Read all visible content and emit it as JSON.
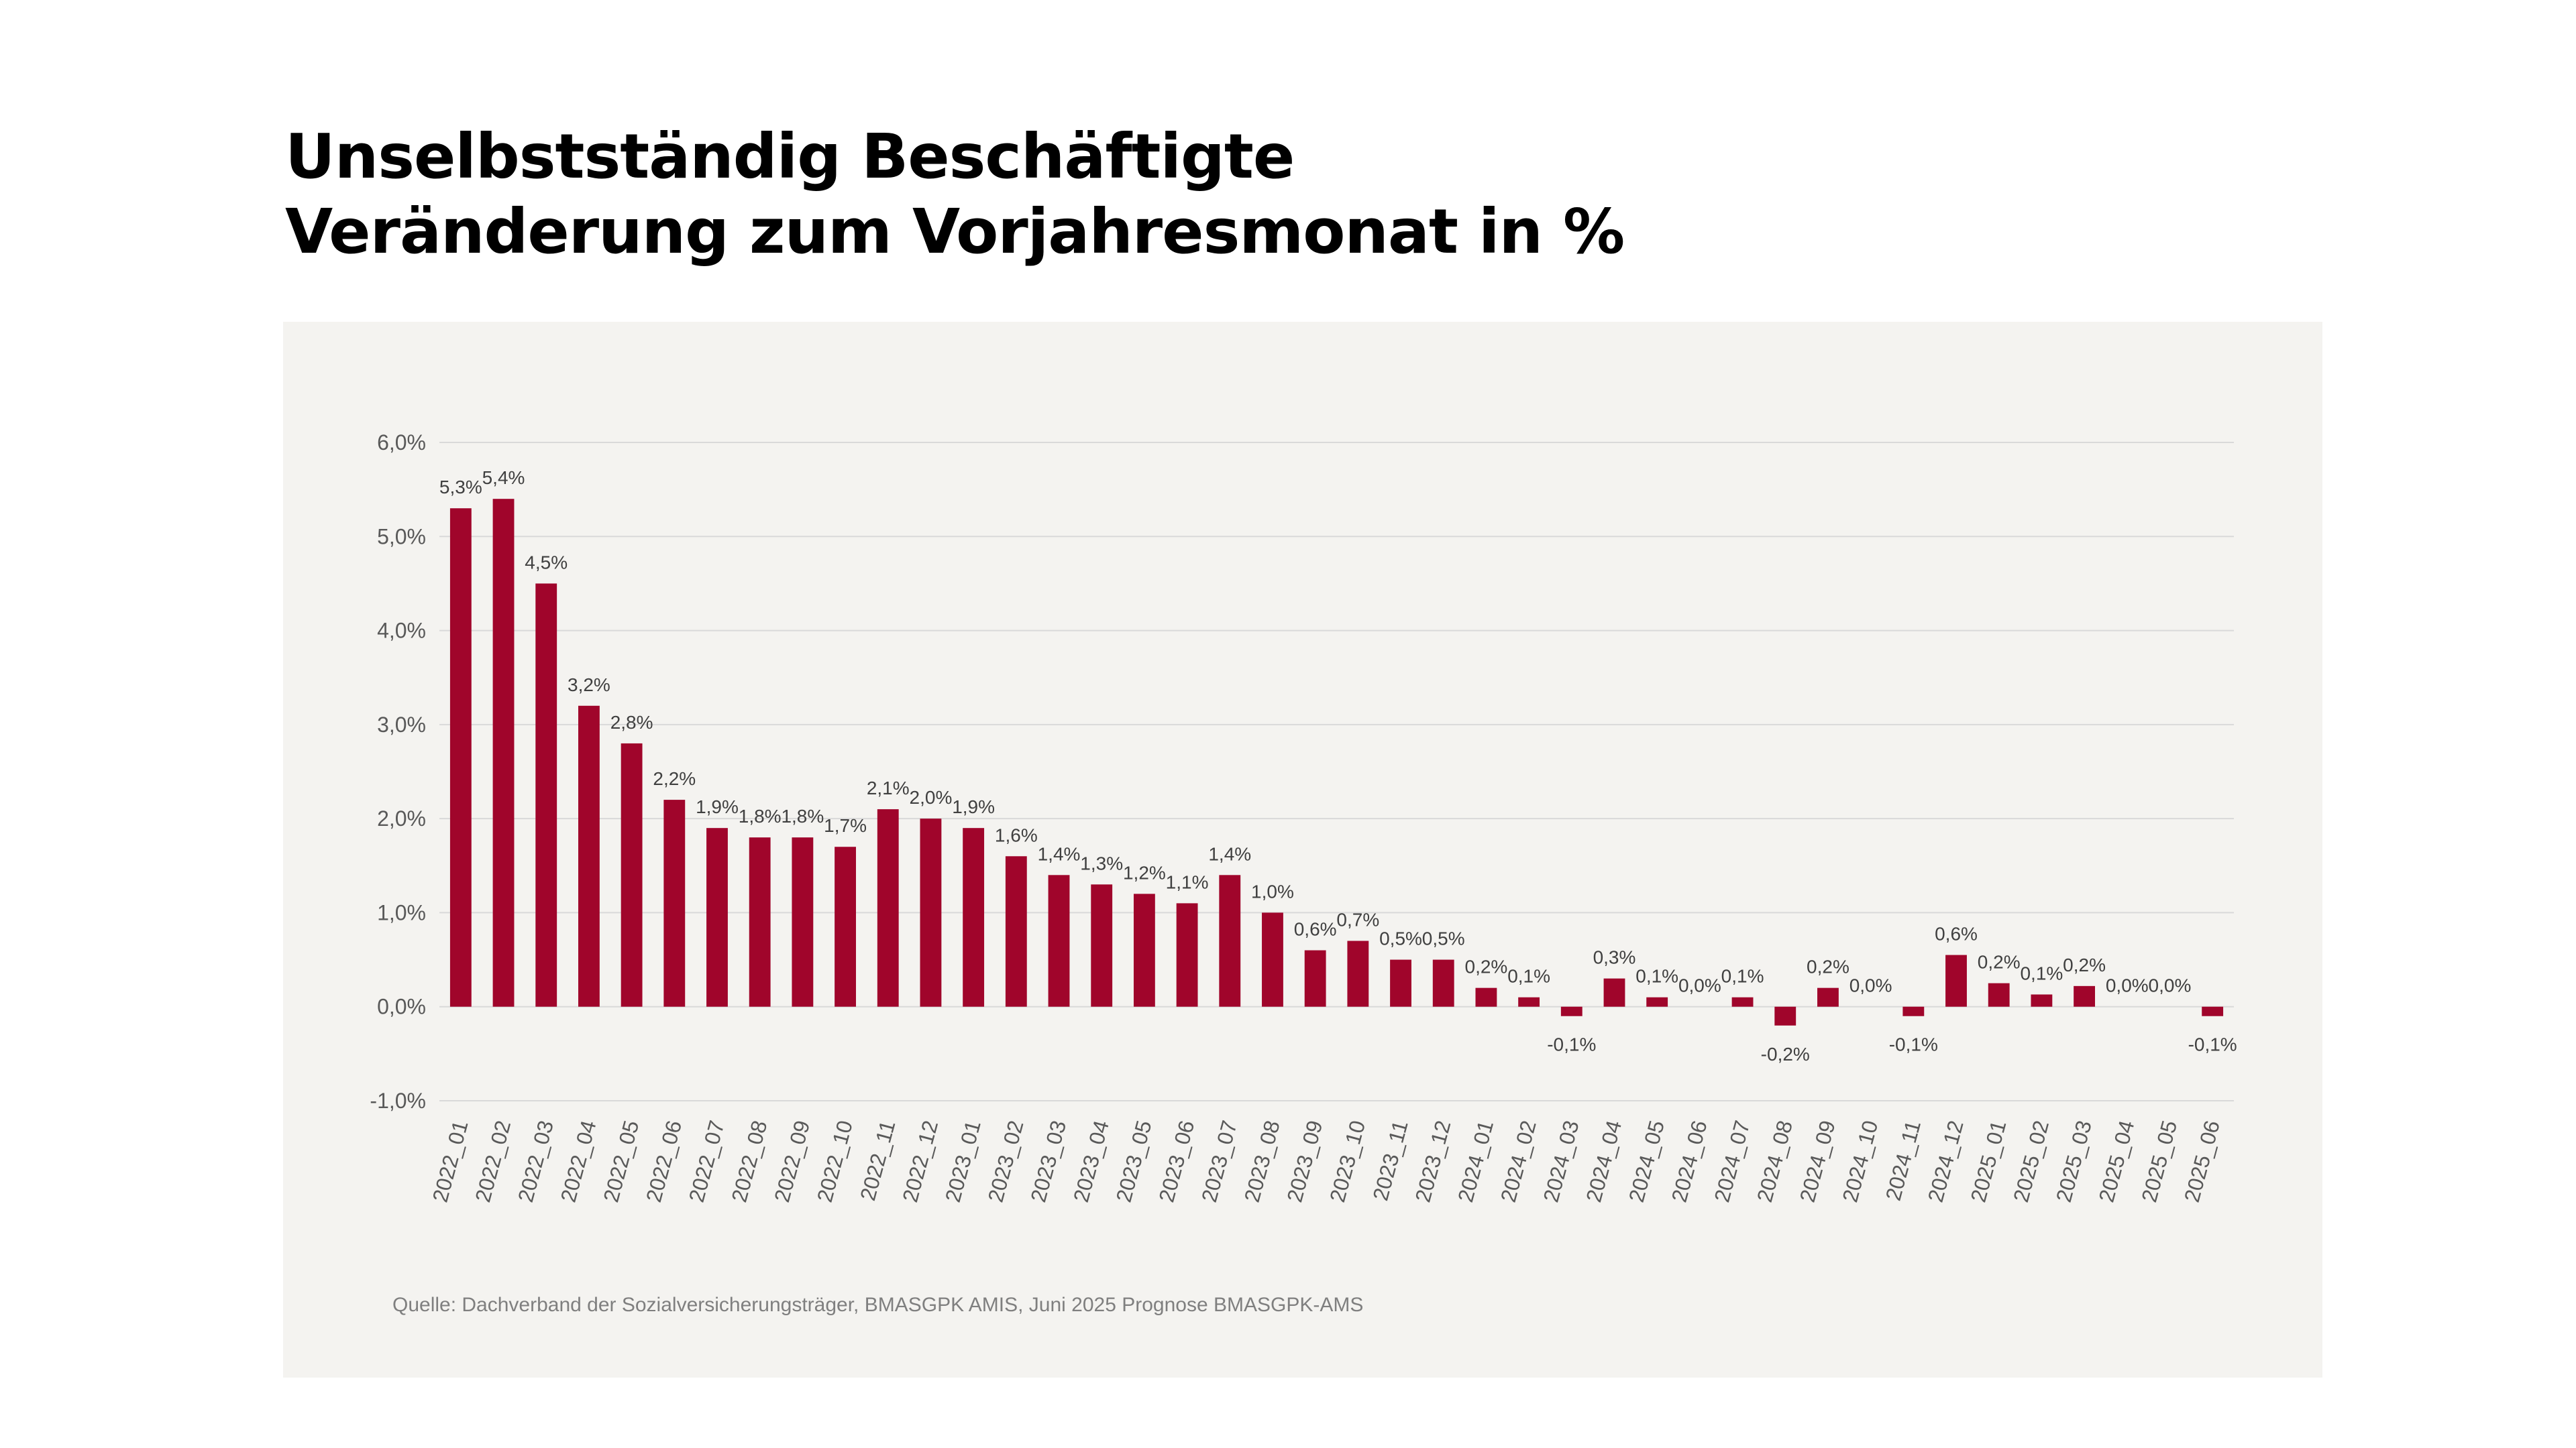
{
  "title": {
    "line1": "Unselbstständig Beschäftigte",
    "line2": "Veränderung zum Vorjahresmonat in %"
  },
  "source": "Quelle: Dachverband der Sozialversicherungsträger, BMASGPK AMIS, Juni 2025 Prognose BMASGPK-AMS",
  "colors": {
    "bar": "#a0052b",
    "grid": "#d9d9d9",
    "tick_text": "#595959",
    "label_text": "#404040",
    "panel": "#f4f3f0"
  },
  "chart_data": {
    "type": "bar",
    "categories": [
      "2022_01",
      "2022_02",
      "2022_03",
      "2022_04",
      "2022_05",
      "2022_06",
      "2022_07",
      "2022_08",
      "2022_09",
      "2022_10",
      "2022_11",
      "2022_12",
      "2023_01",
      "2023_02",
      "2023_03",
      "2023_04",
      "2023_05",
      "2023_06",
      "2023_07",
      "2023_08",
      "2023_09",
      "2023_10",
      "2023_11",
      "2023_12",
      "2024_01",
      "2024_02",
      "2024_03",
      "2024_04",
      "2024_05",
      "2024_06",
      "2024_07",
      "2024_08",
      "2024_09",
      "2024_10",
      "2024_11",
      "2024_12",
      "2025_01",
      "2025_02",
      "2025_03",
      "2025_04",
      "2025_05",
      "2025_06"
    ],
    "values": [
      5.3,
      5.4,
      4.5,
      3.2,
      2.8,
      2.2,
      1.9,
      1.8,
      1.8,
      1.7,
      2.1,
      2.0,
      1.9,
      1.6,
      1.4,
      1.3,
      1.2,
      1.1,
      1.4,
      1.0,
      0.6,
      0.7,
      0.5,
      0.5,
      0.2,
      0.1,
      -0.1,
      0.3,
      0.1,
      0.0,
      0.1,
      -0.2,
      0.2,
      0.0,
      -0.1,
      0.55,
      0.25,
      0.13,
      0.22,
      0.0,
      0.0,
      -0.1
    ],
    "data_labels": [
      "5,3%",
      "5,4%",
      "4,5%",
      "3,2%",
      "2,8%",
      "2,2%",
      "1,9%",
      "1,8%",
      "1,8%",
      "1,7%",
      "2,1%",
      "2,0%",
      "1,9%",
      "1,6%",
      "1,4%",
      "1,3%",
      "1,2%",
      "1,1%",
      "1,4%",
      "1,0%",
      "0,6%",
      "0,7%",
      "0,5%",
      "0,5%",
      "0,2%",
      "0,1%",
      "-0,1%",
      "0,3%",
      "0,1%",
      "0,0%",
      "0,1%",
      "-0,2%",
      "0,2%",
      "0,0%",
      "-0,1%",
      "0,6%",
      "0,2%",
      "0,1%",
      "0,2%",
      "0,0%",
      "0,0%",
      "-0,1%"
    ],
    "yticks": [
      -1.0,
      0.0,
      1.0,
      2.0,
      3.0,
      4.0,
      5.0,
      6.0
    ],
    "ytick_labels": [
      "-1,0%",
      "0,0%",
      "1,0%",
      "2,0%",
      "3,0%",
      "4,0%",
      "5,0%",
      "6,0%"
    ],
    "ylim": [
      -1.0,
      6.0
    ],
    "xlabel": "",
    "ylabel": "",
    "grid": true,
    "legend": false
  }
}
